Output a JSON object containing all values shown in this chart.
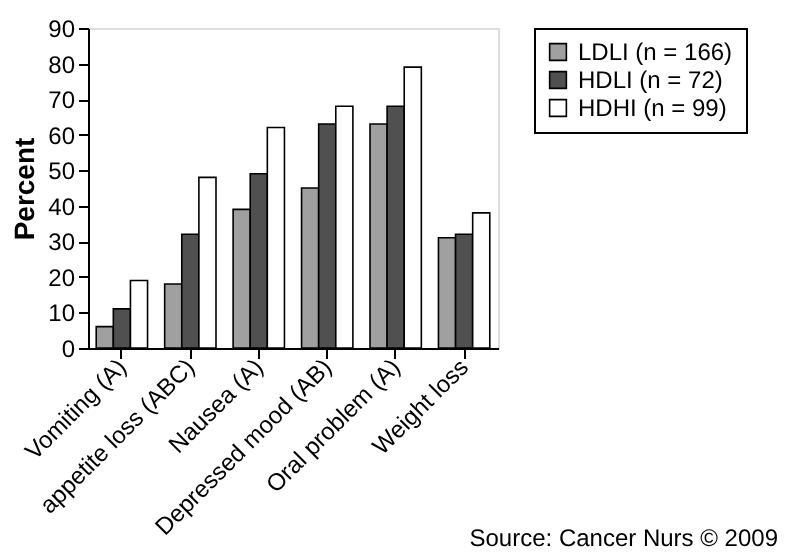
{
  "chart_data": {
    "type": "bar",
    "ylabel": "Percent",
    "categories": [
      "Vomiting (A)",
      "appetite loss (ABC)",
      "Nausea (A)",
      "Depressed mood (AB)",
      "Oral problem (A)",
      "Weight loss"
    ],
    "series": [
      {
        "name": "LDLI (n = 166)",
        "color": "#a0a0a0",
        "values": [
          6,
          18,
          39,
          45,
          63,
          31
        ]
      },
      {
        "name": "HDLI (n = 72)",
        "color": "#505050",
        "values": [
          11,
          32,
          49,
          63,
          68,
          32
        ]
      },
      {
        "name": "HDHI (n = 99)",
        "color": "#ffffff",
        "values": [
          19,
          48,
          62,
          68,
          79,
          38
        ]
      }
    ],
    "ylim": [
      0,
      90
    ],
    "yticks": [
      0,
      10,
      20,
      30,
      40,
      50,
      60,
      70,
      80,
      90
    ],
    "grid": false,
    "legend": "right",
    "annotations": [
      "Source: Cancer Nurs © 2009"
    ]
  }
}
